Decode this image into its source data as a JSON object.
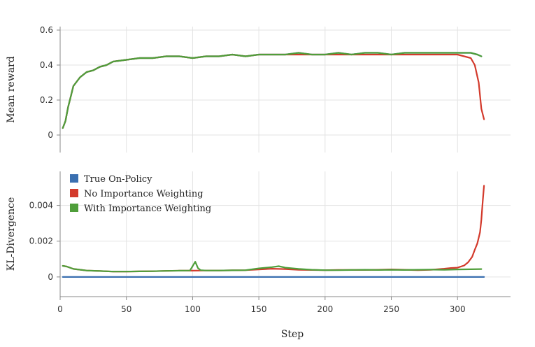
{
  "chart_data": {
    "type": "line",
    "xlabel": "Step",
    "xlim": [
      0,
      340
    ],
    "x_ticks": [
      0,
      50,
      100,
      150,
      200,
      250,
      300
    ],
    "x_tick_labels": [
      "0",
      "50",
      "100",
      "150",
      "200",
      "250",
      "300"
    ],
    "grid": true,
    "panels": [
      {
        "id": "reward",
        "ylabel": "Mean reward",
        "ylim": [
          -0.1,
          0.62
        ],
        "y_ticks": [
          0,
          0.2,
          0.4,
          0.6
        ],
        "y_tick_labels": [
          "0",
          "0.2",
          "0.4",
          "0.6"
        ],
        "series": [
          {
            "name": "True On-Policy",
            "color": "#3a6fb0",
            "x": [
              2,
              4,
              6,
              8,
              10,
              15,
              20,
              25,
              30,
              35,
              40,
              50,
              60,
              70,
              80,
              90,
              100,
              110,
              120,
              130,
              140,
              150,
              160,
              170,
              180,
              190,
              200,
              210,
              220,
              230,
              240,
              250,
              260,
              270,
              280,
              290,
              300,
              305,
              310,
              315,
              318
            ],
            "y": [
              0.04,
              0.08,
              0.16,
              0.22,
              0.28,
              0.33,
              0.36,
              0.37,
              0.39,
              0.4,
              0.42,
              0.43,
              0.44,
              0.44,
              0.45,
              0.45,
              0.44,
              0.45,
              0.45,
              0.46,
              0.45,
              0.46,
              0.46,
              0.46,
              0.47,
              0.46,
              0.46,
              0.47,
              0.46,
              0.47,
              0.47,
              0.46,
              0.47,
              0.47,
              0.47,
              0.47,
              0.47,
              0.47,
              0.47,
              0.46,
              0.45
            ]
          },
          {
            "name": "No Importance Weighting",
            "color": "#d33a2c",
            "x": [
              2,
              4,
              6,
              8,
              10,
              15,
              20,
              25,
              30,
              35,
              40,
              50,
              60,
              70,
              80,
              90,
              100,
              110,
              120,
              130,
              140,
              150,
              160,
              170,
              180,
              190,
              200,
              210,
              220,
              230,
              240,
              250,
              260,
              270,
              280,
              290,
              300,
              305,
              310,
              313,
              316,
              318,
              320
            ],
            "y": [
              0.04,
              0.08,
              0.16,
              0.22,
              0.28,
              0.33,
              0.36,
              0.37,
              0.39,
              0.4,
              0.42,
              0.43,
              0.44,
              0.44,
              0.45,
              0.45,
              0.44,
              0.45,
              0.45,
              0.46,
              0.45,
              0.46,
              0.46,
              0.46,
              0.46,
              0.46,
              0.46,
              0.46,
              0.46,
              0.46,
              0.46,
              0.46,
              0.46,
              0.46,
              0.46,
              0.46,
              0.46,
              0.45,
              0.44,
              0.4,
              0.3,
              0.15,
              0.09
            ]
          },
          {
            "name": "With Importance Weighting",
            "color": "#4f9e3a",
            "x": [
              2,
              4,
              6,
              8,
              10,
              15,
              20,
              25,
              30,
              35,
              40,
              50,
              60,
              70,
              80,
              90,
              100,
              110,
              120,
              130,
              140,
              150,
              160,
              170,
              180,
              190,
              200,
              210,
              220,
              230,
              240,
              250,
              260,
              270,
              280,
              290,
              300,
              305,
              310,
              315,
              318
            ],
            "y": [
              0.04,
              0.08,
              0.16,
              0.22,
              0.28,
              0.33,
              0.36,
              0.37,
              0.39,
              0.4,
              0.42,
              0.43,
              0.44,
              0.44,
              0.45,
              0.45,
              0.44,
              0.45,
              0.45,
              0.46,
              0.45,
              0.46,
              0.46,
              0.46,
              0.47,
              0.46,
              0.46,
              0.47,
              0.46,
              0.47,
              0.47,
              0.46,
              0.47,
              0.47,
              0.47,
              0.47,
              0.47,
              0.47,
              0.47,
              0.46,
              0.45
            ]
          }
        ]
      },
      {
        "id": "kl",
        "ylabel": "KL-Divergence",
        "ylim": [
          -0.0011,
          0.0059
        ],
        "y_ticks": [
          0,
          0.002,
          0.004
        ],
        "y_tick_labels": [
          "0",
          "0.002",
          "0.004"
        ],
        "legend_position": "top-left",
        "series": [
          {
            "name": "True On-Policy",
            "color": "#3a6fb0",
            "x": [
              2,
              320
            ],
            "y": [
              0,
              0
            ]
          },
          {
            "name": "No Importance Weighting",
            "color": "#d33a2c",
            "x": [
              2,
              5,
              10,
              20,
              30,
              40,
              50,
              60,
              70,
              80,
              90,
              100,
              110,
              120,
              130,
              140,
              150,
              160,
              170,
              180,
              190,
              200,
              210,
              220,
              230,
              240,
              250,
              260,
              270,
              280,
              290,
              295,
              300,
              305,
              308,
              311,
              313,
              315,
              317,
              318,
              319,
              320
            ],
            "y": [
              0.00062,
              0.00058,
              0.00045,
              0.00036,
              0.00033,
              0.0003,
              0.0003,
              0.00031,
              0.00032,
              0.00034,
              0.00035,
              0.00035,
              0.00036,
              0.00036,
              0.00037,
              0.00038,
              0.00042,
              0.00046,
              0.00044,
              0.0004,
              0.00039,
              0.00038,
              0.00039,
              0.00039,
              0.00039,
              0.0004,
              0.00042,
              0.0004,
              0.00038,
              0.0004,
              0.00046,
              0.0005,
              0.00052,
              0.00064,
              0.00082,
              0.00112,
              0.00152,
              0.00188,
              0.0025,
              0.0032,
              0.0042,
              0.0051
            ]
          },
          {
            "name": "With Importance Weighting",
            "color": "#4f9e3a",
            "x": [
              2,
              5,
              10,
              20,
              30,
              40,
              50,
              60,
              70,
              80,
              90,
              98,
              100,
              102,
              104,
              106,
              110,
              120,
              130,
              140,
              150,
              160,
              165,
              170,
              180,
              190,
              200,
              210,
              220,
              230,
              240,
              250,
              260,
              270,
              280,
              290,
              300,
              310,
              318
            ],
            "y": [
              0.00062,
              0.00058,
              0.00045,
              0.00036,
              0.00033,
              0.0003,
              0.0003,
              0.00031,
              0.00032,
              0.00034,
              0.00035,
              0.00036,
              0.0006,
              0.00085,
              0.0005,
              0.00038,
              0.00036,
              0.00036,
              0.00037,
              0.00038,
              0.00048,
              0.00055,
              0.0006,
              0.00052,
              0.00045,
              0.0004,
              0.00038,
              0.00038,
              0.00039,
              0.0004,
              0.00039,
              0.0004,
              0.00039,
              0.0004,
              0.00041,
              0.0004,
              0.00042,
              0.00043,
              0.00044
            ]
          }
        ]
      }
    ]
  }
}
